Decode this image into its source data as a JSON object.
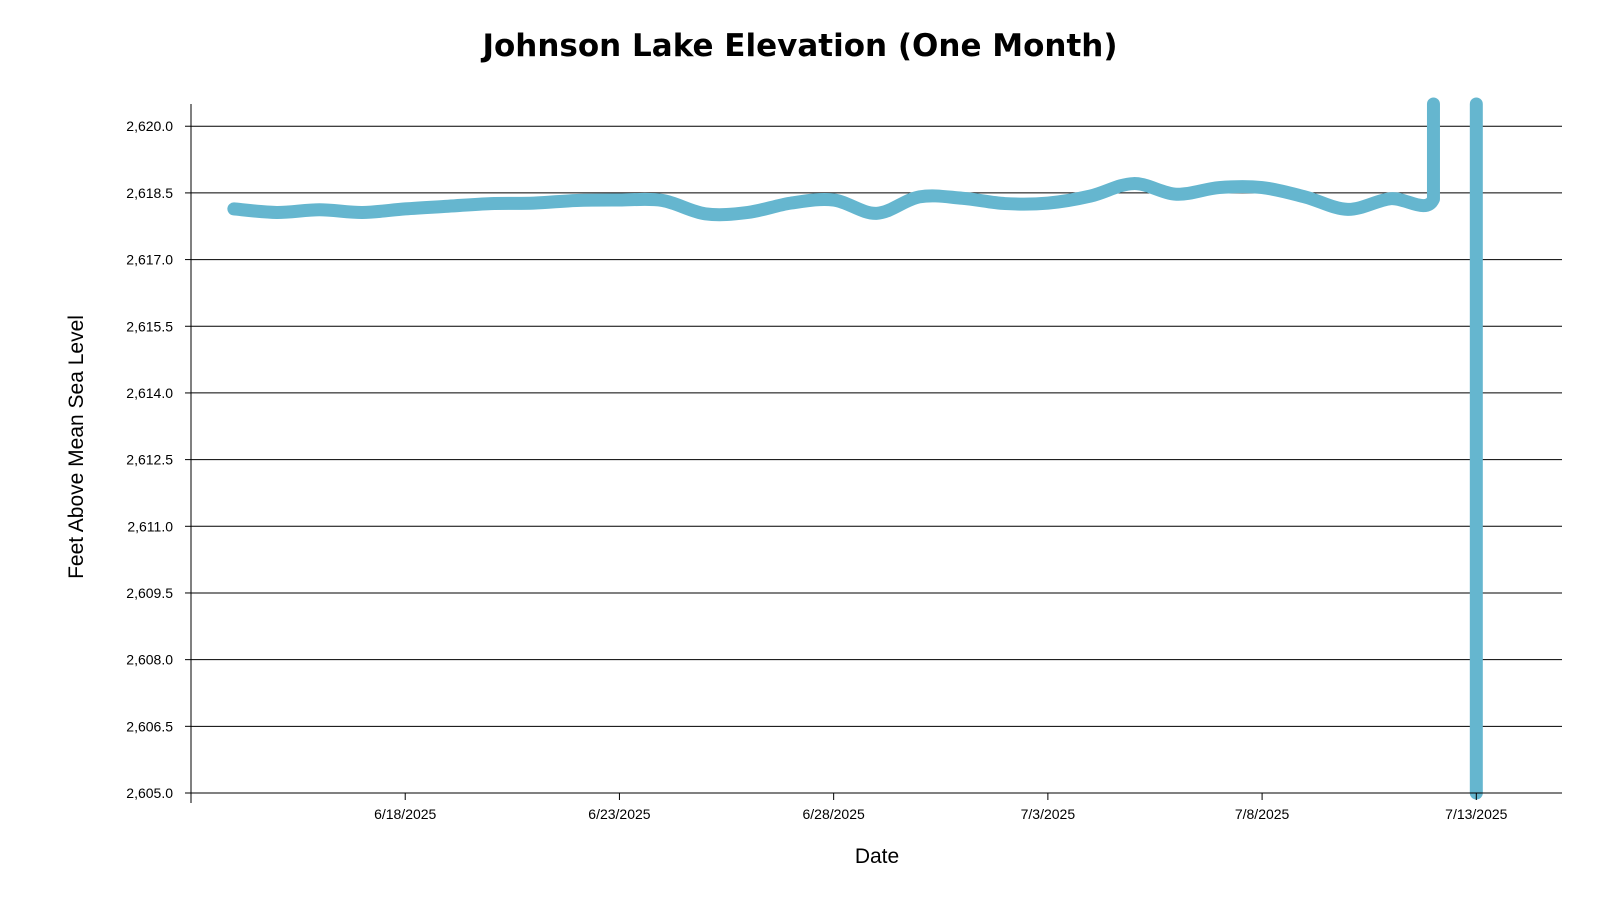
{
  "chart_data": {
    "type": "line",
    "title": "Johnson Lake Elevation (One Month)",
    "xlabel": "Date",
    "ylabel": "Feet Above Mean Sea Level",
    "ylim": [
      2605.0,
      2620.5
    ],
    "xlim": [
      "2025-06-13",
      "2025-07-15"
    ],
    "grid": true,
    "line_color": "#65b6cf",
    "yticks": [
      {
        "value": 2620.0,
        "label": "2,620.0"
      },
      {
        "value": 2618.5,
        "label": "2,618.5"
      },
      {
        "value": 2617.0,
        "label": "2,617.0"
      },
      {
        "value": 2615.5,
        "label": "2,615.5"
      },
      {
        "value": 2614.0,
        "label": "2,614.0"
      },
      {
        "value": 2612.5,
        "label": "2,612.5"
      },
      {
        "value": 2611.0,
        "label": "2,611.0"
      },
      {
        "value": 2609.5,
        "label": "2,609.5"
      },
      {
        "value": 2608.0,
        "label": "2,608.0"
      },
      {
        "value": 2606.5,
        "label": "2,606.5"
      },
      {
        "value": 2605.0,
        "label": "2,605.0"
      }
    ],
    "xticks": [
      {
        "value": "2025-06-18",
        "label": "6/18/2025"
      },
      {
        "value": "2025-06-23",
        "label": "6/23/2025"
      },
      {
        "value": "2025-06-28",
        "label": "6/28/2025"
      },
      {
        "value": "2025-07-03",
        "label": "7/3/2025"
      },
      {
        "value": "2025-07-08",
        "label": "7/8/2025"
      },
      {
        "value": "2025-07-13",
        "label": "7/13/2025"
      }
    ],
    "series": [
      {
        "points": [
          {
            "x": "2025-06-14",
            "y": 2618.14
          },
          {
            "x": "2025-06-15",
            "y": 2618.06
          },
          {
            "x": "2025-06-16",
            "y": 2618.12
          },
          {
            "x": "2025-06-17",
            "y": 2618.06
          },
          {
            "x": "2025-06-18",
            "y": 2618.14
          },
          {
            "x": "2025-06-19",
            "y": 2618.2
          },
          {
            "x": "2025-06-20",
            "y": 2618.26
          },
          {
            "x": "2025-06-21",
            "y": 2618.27
          },
          {
            "x": "2025-06-22",
            "y": 2618.33
          },
          {
            "x": "2025-06-23",
            "y": 2618.34
          },
          {
            "x": "2025-06-24",
            "y": 2618.33
          },
          {
            "x": "2025-06-25",
            "y": 2618.03
          },
          {
            "x": "2025-06-26",
            "y": 2618.06
          },
          {
            "x": "2025-06-27",
            "y": 2618.27
          },
          {
            "x": "2025-06-28",
            "y": 2618.34
          },
          {
            "x": "2025-06-29",
            "y": 2618.04
          },
          {
            "x": "2025-06-30",
            "y": 2618.41
          },
          {
            "x": "2025-07-01",
            "y": 2618.38
          },
          {
            "x": "2025-07-02",
            "y": 2618.26
          },
          {
            "x": "2025-07-03",
            "y": 2618.27
          },
          {
            "x": "2025-07-04",
            "y": 2618.43
          },
          {
            "x": "2025-07-05",
            "y": 2618.71
          },
          {
            "x": "2025-07-06",
            "y": 2618.47
          },
          {
            "x": "2025-07-07",
            "y": 2618.62
          },
          {
            "x": "2025-07-08",
            "y": 2618.62
          },
          {
            "x": "2025-07-09",
            "y": 2618.41
          },
          {
            "x": "2025-07-10",
            "y": 2618.13
          },
          {
            "x": "2025-07-11",
            "y": 2618.37
          },
          {
            "x": "2025-07-12",
            "y": 2618.36
          },
          {
            "x": "2025-07-12",
            "y": 2620.5
          }
        ]
      },
      {
        "points": [
          {
            "x": "2025-07-13",
            "y": 2620.5
          },
          {
            "x": "2025-07-13",
            "y": 2605.0
          }
        ]
      }
    ]
  }
}
